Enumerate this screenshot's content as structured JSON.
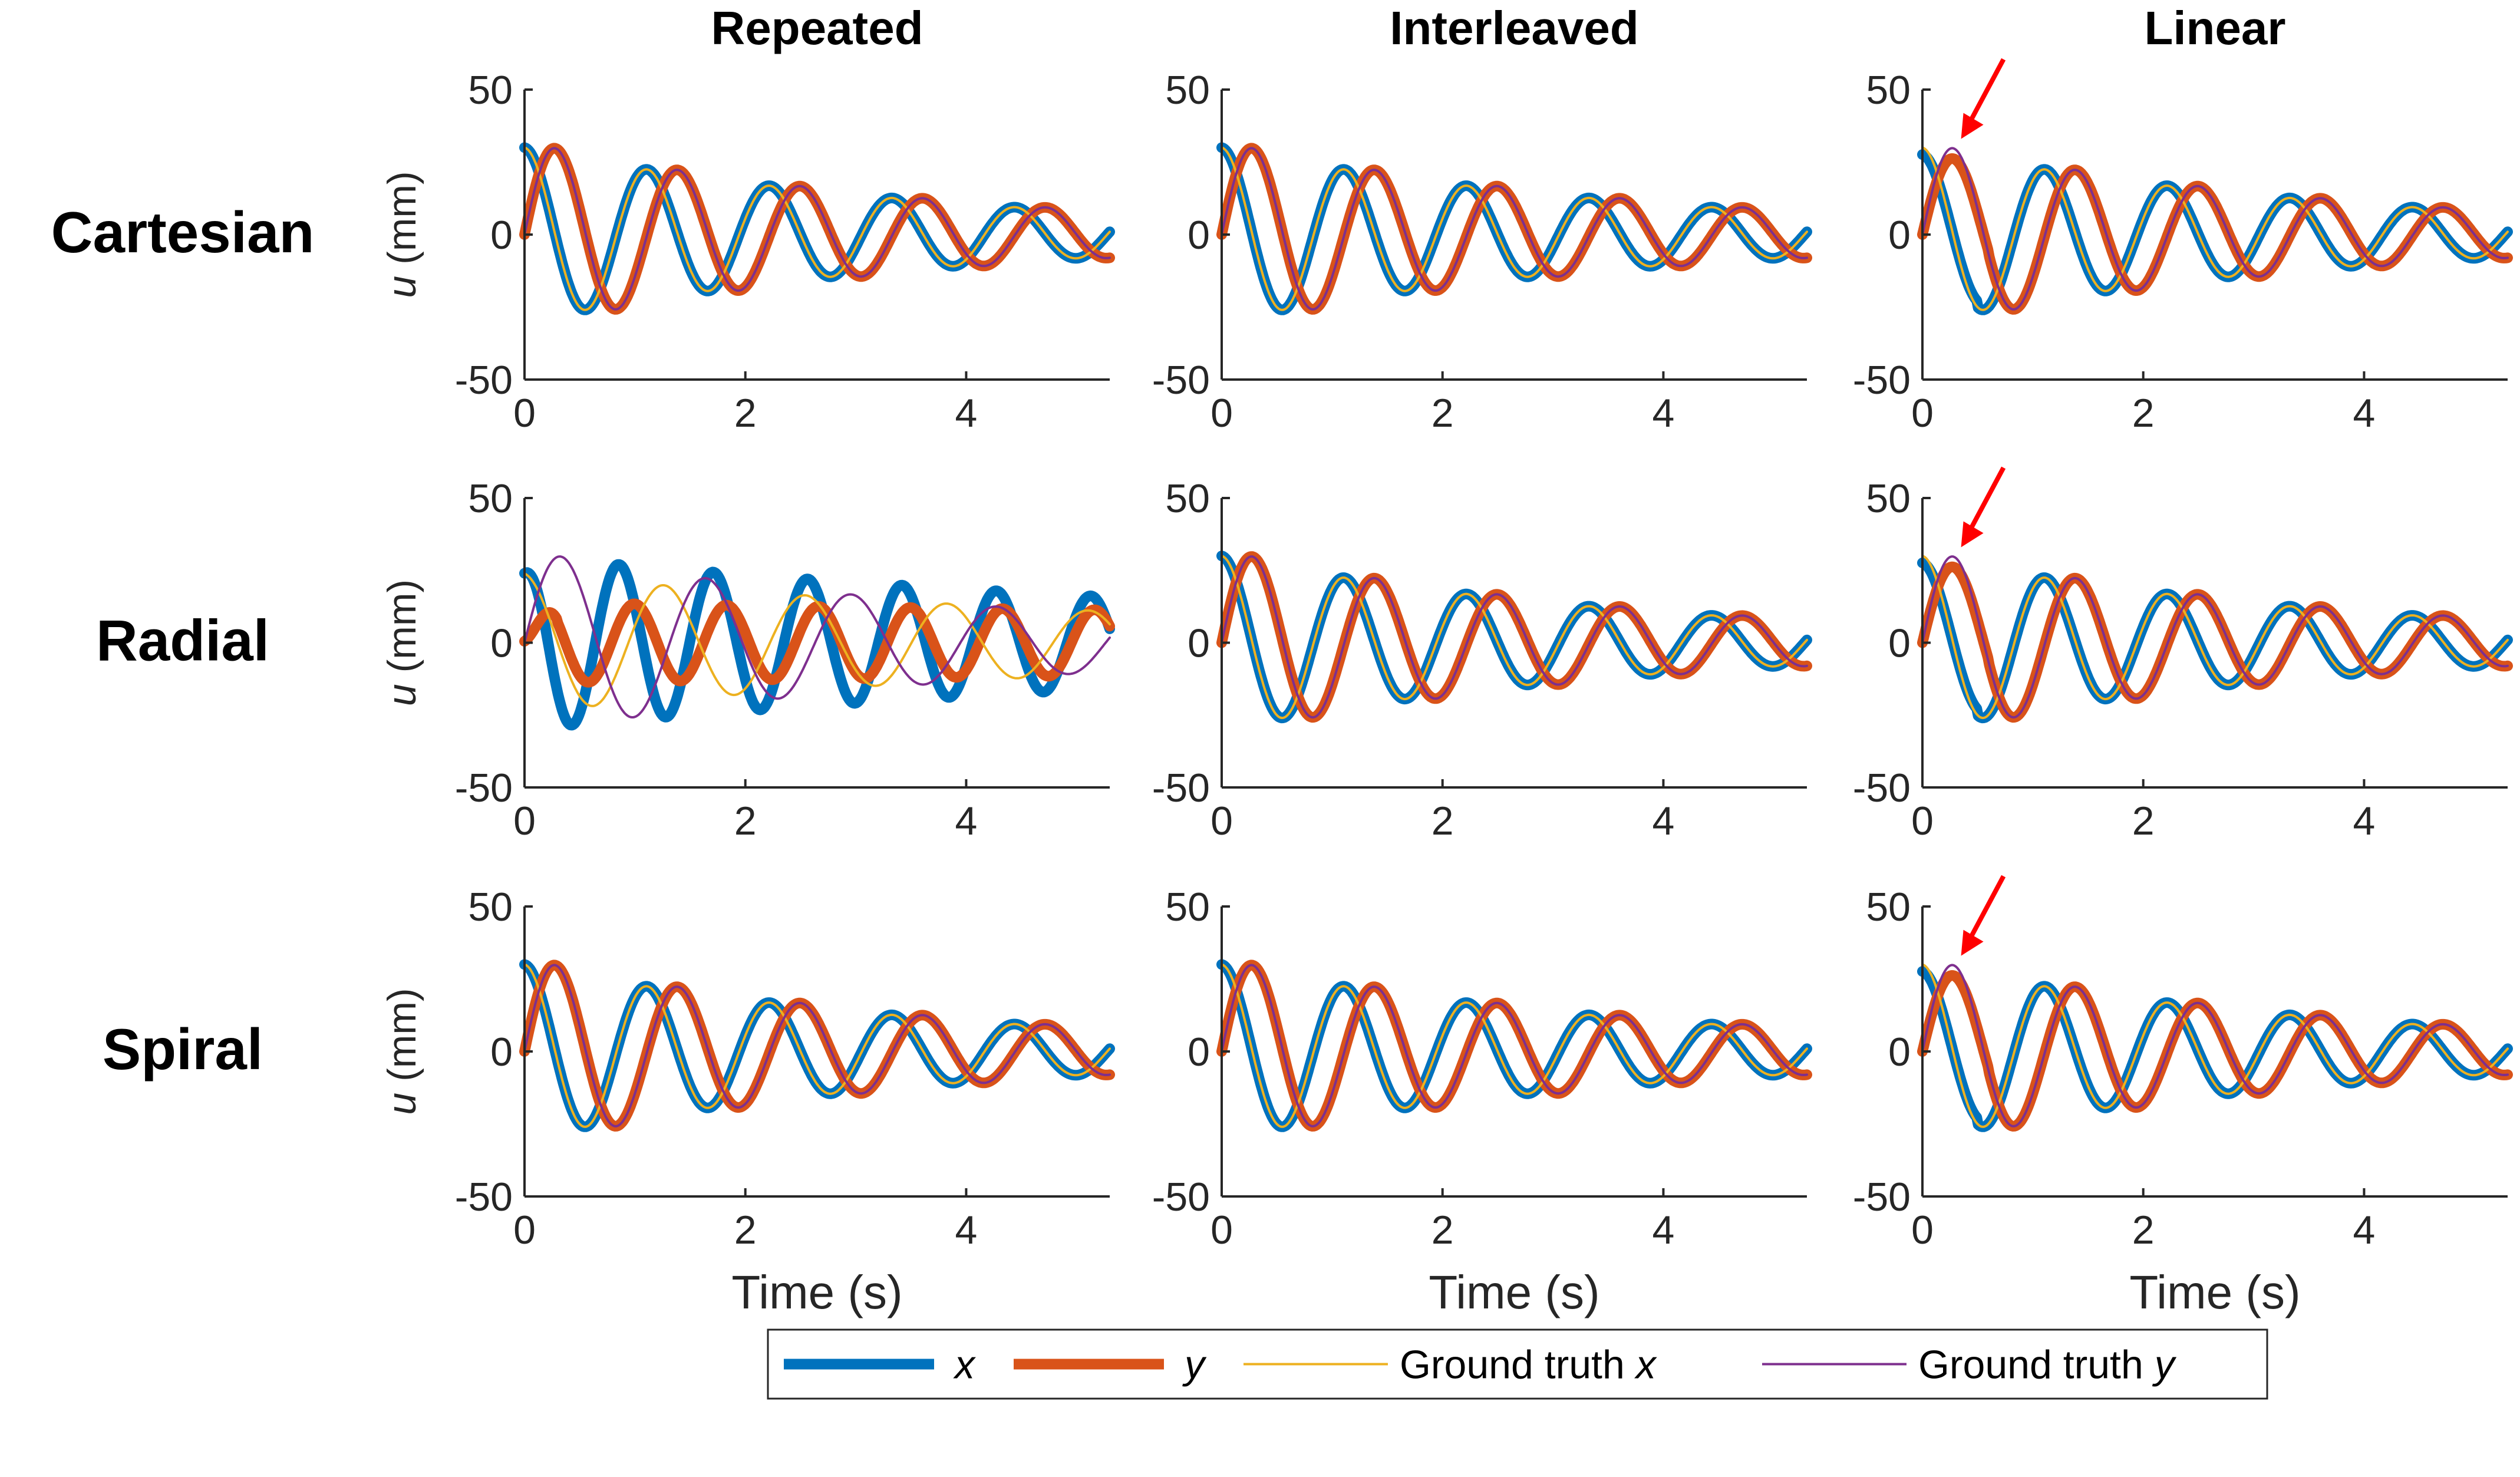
{
  "chart_data": {
    "type": "line",
    "layout": "3x3 grid of small-multiple line plots",
    "column_titles": [
      "Repeated",
      "Interleaved",
      "Linear"
    ],
    "row_titles": [
      "Cartesian",
      "Radial",
      "Spiral"
    ],
    "xlabel": "Time (s)",
    "ylabel_var": "u",
    "ylabel_unit": " (mm)",
    "xlim": [
      0,
      5.3
    ],
    "ylim": [
      -50,
      50
    ],
    "xticks": [
      0,
      2,
      4
    ],
    "yticks": [
      -50,
      0,
      50
    ],
    "legend": {
      "placement": "bottom-center",
      "entries": [
        {
          "series": "x",
          "text": "",
          "var": "x"
        },
        {
          "series": "y",
          "text": "",
          "var": "y"
        },
        {
          "series": "gtx",
          "text": "Ground truth",
          "var": "x"
        },
        {
          "series": "gty",
          "text": "Ground truth",
          "var": "y"
        }
      ]
    },
    "series_styles": {
      "x": {
        "name": "x",
        "color": "#0072BD",
        "weight": "thick"
      },
      "y": {
        "name": "y",
        "color": "#D95319",
        "weight": "thick"
      },
      "gtx": {
        "name": "Ground truth x",
        "color": "#EDB120",
        "weight": "thin"
      },
      "gty": {
        "name": "Ground truth y",
        "color": "#7E2F8E",
        "weight": "thin"
      }
    },
    "ground_truth_model": {
      "x": {
        "amplitude_mm": 30,
        "frequency_hz": 0.9,
        "decay_per_s": 0.26,
        "phase": "cosine"
      },
      "y": {
        "amplitude_mm": 32,
        "frequency_hz": 0.9,
        "decay_per_s": 0.26,
        "phase": "sine",
        "onset_s": 0.29
      }
    },
    "panels": [
      {
        "row": 0,
        "col": 0,
        "quality": "match",
        "arrow": false
      },
      {
        "row": 0,
        "col": 1,
        "quality": "match",
        "arrow": false
      },
      {
        "row": 0,
        "col": 2,
        "quality": "slight_error",
        "arrow": true
      },
      {
        "row": 1,
        "col": 0,
        "quality": "corrupted",
        "arrow": false,
        "x_trace": {
          "amplitude_mm": 30,
          "frequency_hz": 1.17,
          "decay_per_s": 0.12
        },
        "y_trace": {
          "amplitude_mm": 14,
          "frequency_hz": 1.2,
          "decay_per_s": 0.04
        }
      },
      {
        "row": 1,
        "col": 1,
        "quality": "match",
        "arrow": false
      },
      {
        "row": 1,
        "col": 2,
        "quality": "slight_error",
        "arrow": true
      },
      {
        "row": 2,
        "col": 0,
        "quality": "match",
        "arrow": false
      },
      {
        "row": 2,
        "col": 1,
        "quality": "match",
        "arrow": false
      },
      {
        "row": 2,
        "col": 2,
        "quality": "slight_error",
        "arrow": true
      }
    ],
    "annotations": [
      {
        "type": "arrow",
        "color": "#FF0000",
        "panels": [
          "Cartesian/Linear",
          "Radial/Linear",
          "Spiral/Linear"
        ],
        "points_to_s": 0.35
      }
    ]
  }
}
